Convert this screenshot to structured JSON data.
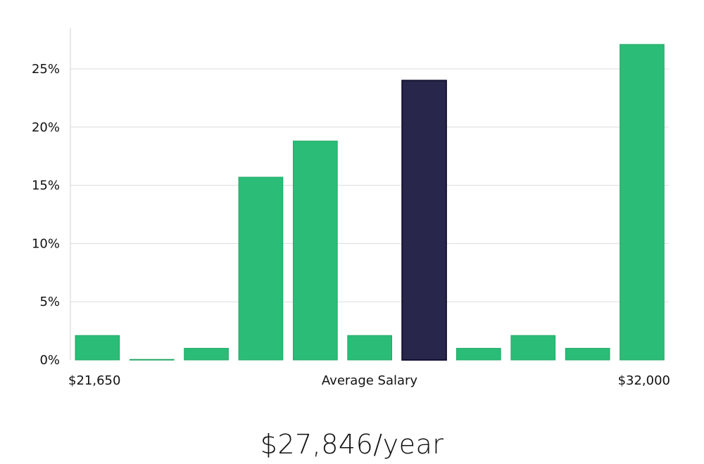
{
  "chart_data": {
    "type": "bar",
    "categories": [
      "1",
      "2",
      "3",
      "4",
      "5",
      "6",
      "7",
      "8",
      "9",
      "10",
      "11"
    ],
    "values": [
      2.1,
      0.05,
      1.0,
      15.7,
      18.8,
      2.1,
      24.0,
      1.0,
      2.1,
      1.0,
      27.1
    ],
    "highlight_index": 6,
    "y_ticks": [
      "0%",
      "5%",
      "10%",
      "15%",
      "20%",
      "25%"
    ],
    "y_tick_values": [
      0,
      5,
      10,
      15,
      20,
      25
    ],
    "ylim": [
      0,
      28.5
    ],
    "x_min_label": "$21,650",
    "xlabel": "Average Salary",
    "x_max_label": "$32,000",
    "grid": true,
    "colors": {
      "bar": "#2bbd77",
      "bar_stroke": "#22a865",
      "highlight": "#28264a",
      "highlight_stroke": "#141233",
      "grid": "#dcdcdc",
      "axis": "#d0d0d0"
    }
  },
  "summary": {
    "salary_text": "$27,846/year"
  }
}
